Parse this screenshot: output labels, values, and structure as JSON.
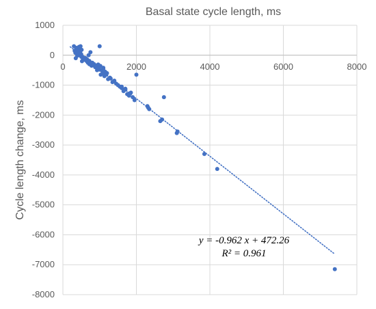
{
  "chart_data": {
    "type": "scatter",
    "title": "",
    "xlabel": "Basal state cycle length, ms",
    "ylabel": "Cycle length change, ms",
    "xlim": [
      0,
      8000
    ],
    "ylim": [
      -8000,
      1000
    ],
    "xticks": [
      "0",
      "2000",
      "4000",
      "6000",
      "8000"
    ],
    "yticks": [
      "1000",
      "0",
      "-1000",
      "-2000",
      "-3000",
      "-4000",
      "-5000",
      "-6000",
      "-7000",
      "-8000"
    ],
    "x_axis_position": "top",
    "grid": true,
    "legend": "none",
    "colors": {
      "points": "#4472c4",
      "trendline": "#4472c4",
      "grid": "#d9d9d9",
      "text": "#595959"
    },
    "series": [
      {
        "x": [
          300,
          320,
          340,
          360,
          380,
          400,
          420,
          440,
          460,
          480,
          500,
          350,
          390,
          430,
          470,
          510,
          550,
          600,
          650,
          700,
          750,
          800,
          850,
          900,
          950,
          1000,
          1050,
          1100,
          1150,
          1200,
          520,
          560,
          620,
          680,
          720,
          780,
          830,
          880,
          930,
          980,
          1030,
          1080,
          1130,
          1180,
          1230,
          1280,
          1350,
          1400,
          1450,
          1500,
          1550,
          1600,
          1650,
          1700,
          1750,
          1800,
          1850,
          1900,
          450,
          480,
          530,
          580,
          640,
          700,
          760,
          820,
          880,
          940,
          1000,
          410,
          360,
          460,
          500,
          540,
          600,
          660,
          720,
          800,
          960,
          1020,
          1100,
          1300,
          1600,
          1700,
          1800,
          1950,
          2000,
          2300,
          2320,
          2350,
          2650,
          2700,
          2750,
          3100,
          3120,
          3850,
          4200,
          7400
        ],
        "y": [
          300,
          150,
          80,
          250,
          50,
          100,
          200,
          280,
          120,
          300,
          -50,
          -100,
          -20,
          50,
          100,
          180,
          -120,
          -150,
          -200,
          0,
          100,
          -250,
          -300,
          -350,
          -400,
          300,
          -500,
          -450,
          -550,
          -600,
          -200,
          -150,
          -100,
          -250,
          -300,
          -350,
          -300,
          -400,
          -500,
          -450,
          -650,
          -600,
          -700,
          -650,
          -800,
          -750,
          -900,
          -850,
          -950,
          -1000,
          -1050,
          -1100,
          -1200,
          -1150,
          -1300,
          -1350,
          -1250,
          -1400,
          0,
          50,
          -80,
          -150,
          -180,
          -220,
          -280,
          -330,
          -380,
          -420,
          -480,
          20,
          120,
          80,
          30,
          -60,
          -90,
          -140,
          -190,
          -260,
          -310,
          -360,
          -420,
          -780,
          -1050,
          -1120,
          -1280,
          -1500,
          -650,
          -1700,
          -1750,
          -1800,
          -2200,
          -2150,
          -1400,
          -2600,
          -2550,
          -3300,
          -3800,
          -7150
        ]
      }
    ],
    "trendline": {
      "slope": -0.962,
      "intercept": 472.26,
      "x_range": [
        200,
        7400
      ],
      "style": "dotted",
      "equation": "y = -0.962 x + 472.26",
      "r_squared": "R² = 0.961"
    }
  }
}
